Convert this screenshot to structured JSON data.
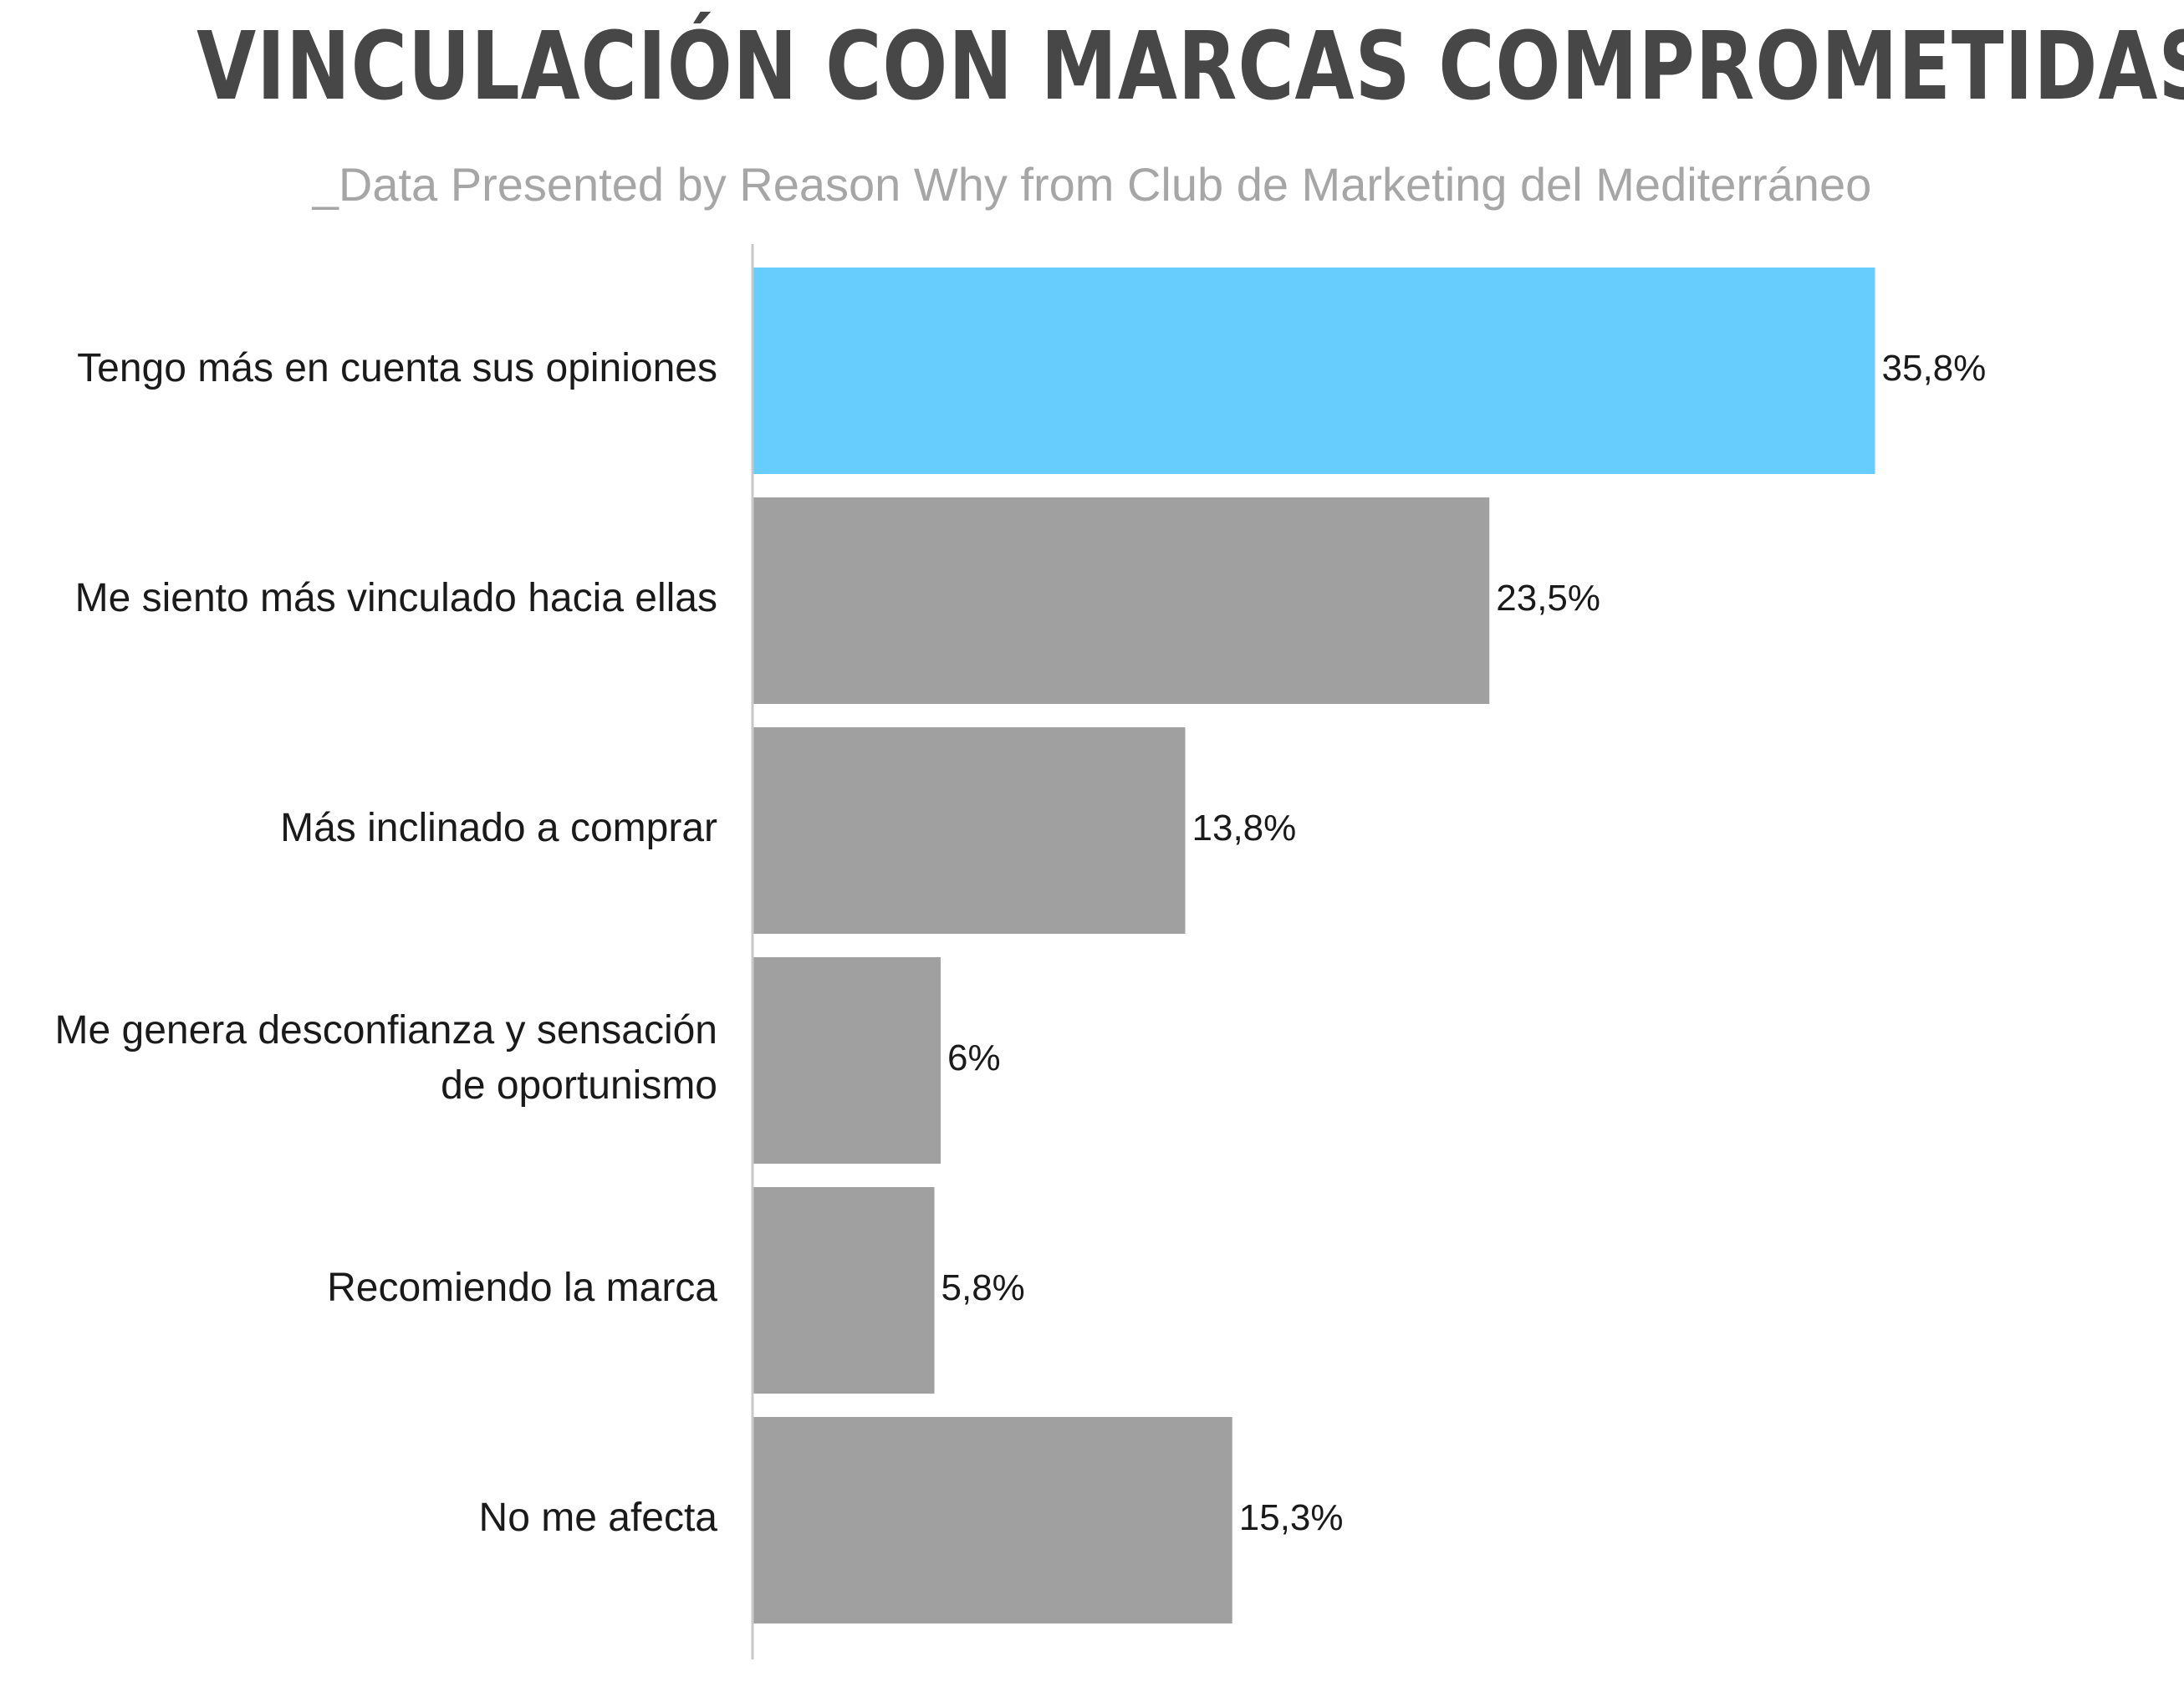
{
  "chart_data": {
    "type": "bar",
    "orientation": "horizontal",
    "title": "VINCULACIÓN CON MARCAS COMPROMETIDAS",
    "subtitle": "_Data Presented by Reason Why from  Club de Marketing del Mediterráneo",
    "categories": [
      "Tengo más en cuenta sus opiniones",
      "Me siento más vinculado hacia ellas",
      "Más inclinado a comprar",
      "Me genera desconfianza y sensación de oportunismo",
      "Recomiendo la marca",
      "No me afecta"
    ],
    "category_lines": [
      [
        "Tengo más en cuenta sus opiniones"
      ],
      [
        "Me siento más vinculado hacia ellas"
      ],
      [
        "Más inclinado a comprar"
      ],
      [
        "Me genera desconfianza y sensación",
        "de oportunismo"
      ],
      [
        "Recomiendo la marca"
      ],
      [
        "No me afecta"
      ]
    ],
    "values": [
      35.8,
      23.5,
      13.8,
      6,
      5.8,
      15.3
    ],
    "value_labels": [
      "35,8%",
      "23,5%",
      "13,8%",
      "6%",
      "5,8%",
      "15,3%"
    ],
    "xlim": [
      0,
      40
    ],
    "grid": false,
    "legend": "none",
    "colors": {
      "highlight": "#66cdfd",
      "default": "#a0a0a0",
      "axis": "#c8c8c8"
    },
    "highlight_index": 0
  }
}
